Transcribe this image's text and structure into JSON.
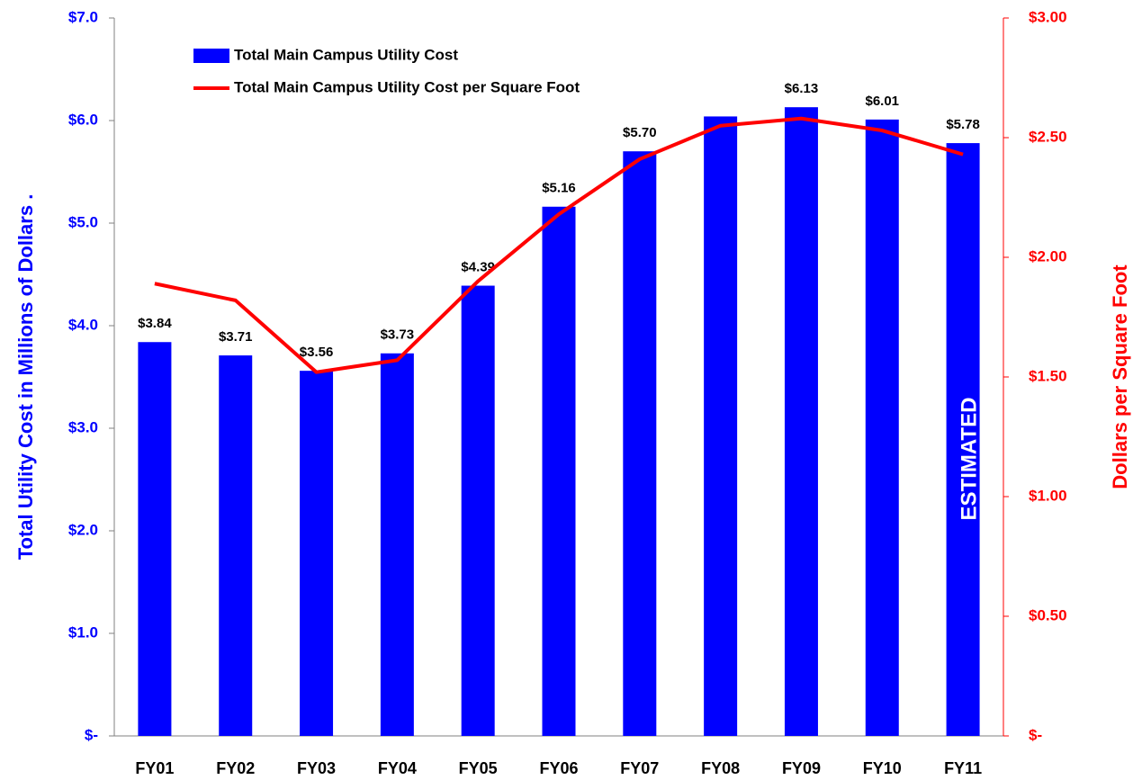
{
  "chart_data": {
    "type": "bar_line",
    "categories": [
      "FY01",
      "FY02",
      "FY03",
      "FY04",
      "FY05",
      "FY06",
      "FY07",
      "FY08",
      "FY09",
      "FY10",
      "FY11"
    ],
    "series": [
      {
        "name": "Total Main Campus Utility Cost",
        "type": "bar",
        "color": "#0000ff",
        "values": [
          3.84,
          3.71,
          3.56,
          3.73,
          4.39,
          5.16,
          5.7,
          6.04,
          6.13,
          6.01,
          5.78
        ],
        "value_labels": [
          "$3.84",
          "$3.71",
          "$3.56",
          "$3.73",
          "$4.39",
          "$5.16",
          "$5.70",
          null,
          "$6.13",
          "$6.01",
          "$5.78"
        ]
      },
      {
        "name": "Total Main Campus Utility Cost per Square Foot",
        "type": "line",
        "color": "#ff0000",
        "axis": "y2",
        "values": [
          1.89,
          1.82,
          1.52,
          1.57,
          1.9,
          2.18,
          2.41,
          2.55,
          2.58,
          2.53,
          2.43
        ]
      }
    ],
    "ylabel": "Total Utility Cost in Millions of Dollars  .",
    "y2label": "Dollars per Square Foot",
    "annotation": "ESTIMATED",
    "ylim": [
      0,
      7
    ],
    "yticks": [
      {
        "value": 0,
        "label": "$-"
      },
      {
        "value": 1,
        "label": "$1.0"
      },
      {
        "value": 2,
        "label": "$2.0"
      },
      {
        "value": 3,
        "label": "$3.0"
      },
      {
        "value": 4,
        "label": "$4.0"
      },
      {
        "value": 5,
        "label": "$5.0"
      },
      {
        "value": 6,
        "label": "$6.0"
      },
      {
        "value": 7,
        "label": "$7.0"
      }
    ],
    "y2lim": [
      0,
      3
    ],
    "y2ticks": [
      {
        "value": 0,
        "label": "$-"
      },
      {
        "value": 0.5,
        "label": "$0.50"
      },
      {
        "value": 1,
        "label": "$1.00"
      },
      {
        "value": 1.5,
        "label": "$1.50"
      },
      {
        "value": 2,
        "label": "$2.00"
      },
      {
        "value": 2.5,
        "label": "$2.50"
      },
      {
        "value": 3,
        "label": "$3.00"
      }
    ],
    "legend": "upper left"
  }
}
